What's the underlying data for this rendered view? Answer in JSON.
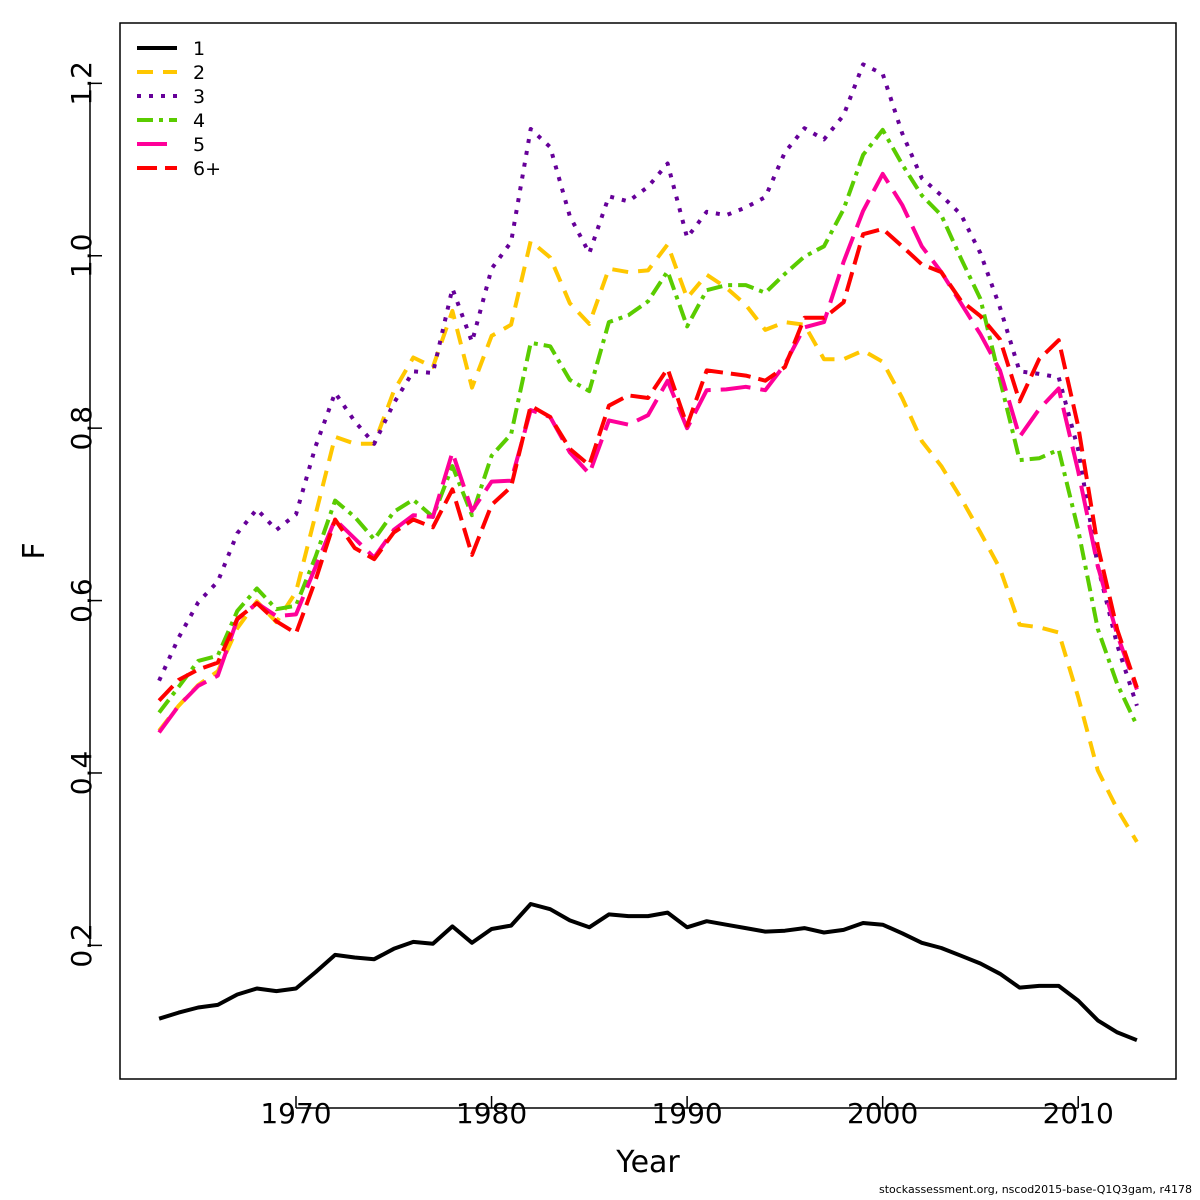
{
  "chart_data": {
    "type": "line",
    "title": "",
    "xlabel": "Year",
    "ylabel": "F",
    "xlim": [
      1961,
      2015
    ],
    "ylim": [
      0.045,
      1.27
    ],
    "x_ticks": [
      1970,
      1980,
      1990,
      2000,
      2010
    ],
    "y_ticks": [
      0.2,
      0.4,
      0.6,
      0.8,
      1.0,
      1.2
    ],
    "x_tick_labels": [
      "1970",
      "1980",
      "1990",
      "2000",
      "2010"
    ],
    "y_tick_labels": [
      "0.2",
      "0.4",
      "0.6",
      "0.8",
      "1.0",
      "1.2"
    ],
    "grid": false,
    "legend_position": "top-left",
    "x": [
      1963,
      1964,
      1965,
      1966,
      1967,
      1968,
      1969,
      1970,
      1971,
      1972,
      1973,
      1974,
      1975,
      1976,
      1977,
      1978,
      1979,
      1980,
      1981,
      1982,
      1983,
      1984,
      1985,
      1986,
      1987,
      1988,
      1989,
      1990,
      1991,
      1992,
      1993,
      1994,
      1995,
      1996,
      1997,
      1998,
      1999,
      2000,
      2001,
      2002,
      2003,
      2004,
      2005,
      2006,
      2007,
      2008,
      2009,
      2010,
      2011,
      2012,
      2013
    ],
    "series": [
      {
        "name": "1",
        "color": "#000000",
        "dash": "",
        "width": 4,
        "values": [
          0.115,
          0.122,
          0.128,
          0.131,
          0.143,
          0.15,
          0.147,
          0.15,
          0.169,
          0.189,
          0.186,
          0.184,
          0.196,
          0.204,
          0.202,
          0.222,
          0.203,
          0.219,
          0.223,
          0.248,
          0.242,
          0.229,
          0.221,
          0.236,
          0.234,
          0.234,
          0.238,
          0.221,
          0.228,
          0.224,
          0.22,
          0.216,
          0.217,
          0.22,
          0.215,
          0.218,
          0.226,
          0.224,
          0.214,
          0.203,
          0.197,
          0.188,
          0.179,
          0.167,
          0.151,
          0.153,
          0.153,
          0.136,
          0.113,
          0.099,
          0.09
        ]
      },
      {
        "name": "2",
        "color": "#FFC700",
        "dash": "16,10",
        "width": 4,
        "values": [
          0.449,
          0.478,
          0.502,
          0.518,
          0.568,
          0.599,
          0.575,
          0.61,
          0.7,
          0.79,
          0.782,
          0.782,
          0.843,
          0.882,
          0.871,
          0.936,
          0.847,
          0.907,
          0.92,
          1.017,
          0.998,
          0.945,
          0.921,
          0.985,
          0.981,
          0.983,
          1.013,
          0.951,
          0.978,
          0.963,
          0.943,
          0.914,
          0.923,
          0.92,
          0.88,
          0.88,
          0.89,
          0.877,
          0.835,
          0.785,
          0.756,
          0.719,
          0.679,
          0.637,
          0.572,
          0.569,
          0.563,
          0.488,
          0.403,
          0.358,
          0.32
        ]
      },
      {
        "name": "3",
        "color": "#660099",
        "dash": "4,8",
        "width": 4,
        "values": [
          0.507,
          0.557,
          0.598,
          0.622,
          0.678,
          0.706,
          0.682,
          0.7,
          0.779,
          0.841,
          0.808,
          0.782,
          0.829,
          0.866,
          0.864,
          0.962,
          0.9,
          0.985,
          1.016,
          1.147,
          1.126,
          1.046,
          1.003,
          1.069,
          1.063,
          1.08,
          1.107,
          1.021,
          1.051,
          1.047,
          1.056,
          1.068,
          1.12,
          1.148,
          1.135,
          1.163,
          1.222,
          1.211,
          1.142,
          1.09,
          1.07,
          1.048,
          1.003,
          0.94,
          0.866,
          0.863,
          0.859,
          0.775,
          0.64,
          0.548,
          0.478
        ]
      },
      {
        "name": "4",
        "color": "#5ACC00",
        "dash": "16,6,4,6",
        "width": 4,
        "values": [
          0.47,
          0.5,
          0.53,
          0.536,
          0.588,
          0.614,
          0.59,
          0.594,
          0.651,
          0.716,
          0.697,
          0.671,
          0.703,
          0.717,
          0.697,
          0.756,
          0.699,
          0.768,
          0.793,
          0.899,
          0.895,
          0.856,
          0.843,
          0.923,
          0.931,
          0.947,
          0.982,
          0.918,
          0.96,
          0.966,
          0.966,
          0.957,
          0.979,
          0.999,
          1.011,
          1.054,
          1.117,
          1.146,
          1.106,
          1.07,
          1.047,
          0.997,
          0.95,
          0.856,
          0.763,
          0.765,
          0.775,
          0.682,
          0.567,
          0.503,
          0.455
        ]
      },
      {
        "name": "5",
        "color": "#FF0099",
        "dash": "30,10",
        "width": 4,
        "values": [
          0.447,
          0.478,
          0.501,
          0.513,
          0.578,
          0.597,
          0.582,
          0.584,
          0.639,
          0.694,
          0.672,
          0.65,
          0.682,
          0.699,
          0.697,
          0.772,
          0.704,
          0.738,
          0.739,
          0.821,
          0.813,
          0.772,
          0.747,
          0.809,
          0.804,
          0.815,
          0.855,
          0.8,
          0.844,
          0.845,
          0.848,
          0.844,
          0.874,
          0.917,
          0.923,
          0.993,
          1.052,
          1.095,
          1.059,
          1.011,
          0.981,
          0.945,
          0.909,
          0.867,
          0.79,
          0.822,
          0.846,
          0.75,
          0.64,
          0.56,
          0.497
        ]
      },
      {
        "name": "6+",
        "color": "#FF0000",
        "dash": "20,8",
        "width": 4,
        "values": [
          0.484,
          0.508,
          0.52,
          0.528,
          0.579,
          0.597,
          0.576,
          0.562,
          0.624,
          0.694,
          0.661,
          0.648,
          0.679,
          0.694,
          0.685,
          0.729,
          0.653,
          0.711,
          0.732,
          0.826,
          0.813,
          0.776,
          0.757,
          0.826,
          0.838,
          0.835,
          0.869,
          0.803,
          0.867,
          0.864,
          0.861,
          0.855,
          0.871,
          0.928,
          0.928,
          0.946,
          1.025,
          1.031,
          1.011,
          0.99,
          0.981,
          0.948,
          0.93,
          0.903,
          0.831,
          0.88,
          0.902,
          0.802,
          0.663,
          0.566,
          0.499
        ]
      }
    ]
  },
  "footer": "stockassessment.org, nscod2015-base-Q1Q3gam, r4178"
}
